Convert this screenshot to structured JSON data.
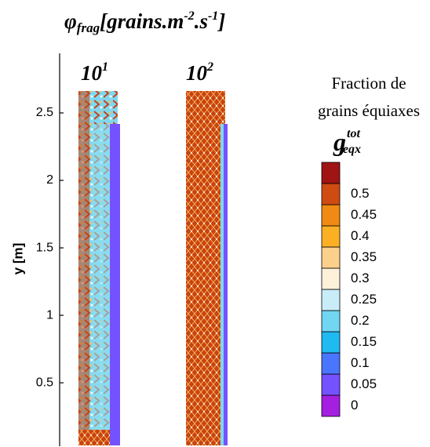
{
  "chart_data": {
    "type": "contour",
    "title_parts": [
      "φ",
      "frag",
      "[grains.m",
      "-2",
      ".s",
      "-1",
      "]"
    ],
    "panels": [
      {
        "label": "10",
        "exponent": "1"
      },
      {
        "label": "10",
        "exponent": "2"
      }
    ],
    "y_label": "y [m]",
    "ylim": [
      0.03,
      2.93
    ],
    "yticks": [
      0.5,
      1,
      1.5,
      2,
      2.5
    ],
    "colorbar": {
      "title_lines": [
        "Fraction de",
        "grains équiaxes"
      ],
      "symbol": {
        "base": "g",
        "superscript": "tot",
        "subscript": "eqx"
      },
      "levels": [
        0,
        0.05,
        0.1,
        0.15,
        0.2,
        0.25,
        0.3,
        0.35,
        0.4,
        0.45,
        0.5,
        null
      ],
      "colors": [
        "#a51fe0",
        "#7552ff",
        "#4a76ff",
        "#1fbaf2",
        "#71d6f2",
        "#c9edf8",
        "#fdf1da",
        "#fcd08c",
        "#fbb024",
        "#f08a12",
        "#d04b12",
        "#a01414"
      ]
    }
  }
}
